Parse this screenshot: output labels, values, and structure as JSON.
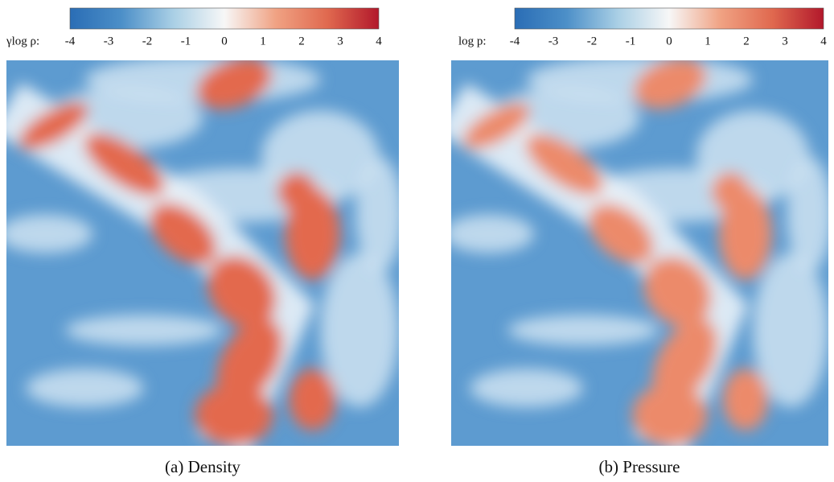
{
  "figure": {
    "colormap": [
      "#2a6db5",
      "#4c8fc8",
      "#a9cfe5",
      "#f7f7f7",
      "#f0a283",
      "#e0694f",
      "#b2182b"
    ],
    "panels": [
      {
        "label": "γlog ρ:",
        "clim": [
          -4,
          4
        ],
        "ticks": [
          -4,
          -3,
          -2,
          -1,
          0,
          1,
          2,
          3,
          4
        ],
        "caption": "(a) Density"
      },
      {
        "label": "log p:",
        "clim": [
          -4,
          4
        ],
        "ticks": [
          -4,
          -3,
          -2,
          -1,
          0,
          1,
          2,
          3,
          4
        ],
        "caption": "(b) Pressure"
      }
    ]
  }
}
